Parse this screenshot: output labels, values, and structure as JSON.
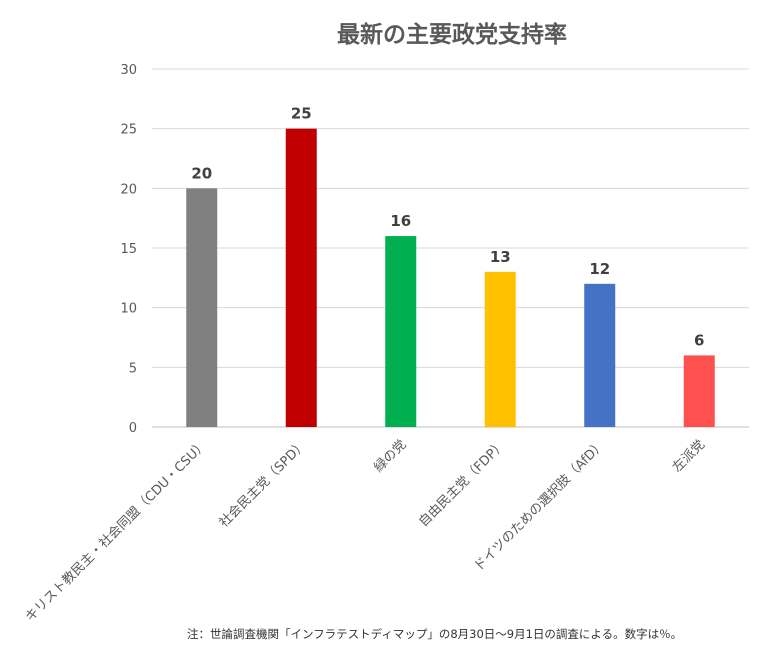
{
  "chart_data": {
    "type": "bar",
    "title": "最新の主要政党支持率",
    "categories": [
      "キリスト教民主・社会同盟（CDU・CSU）",
      "社会民主党（SPD）",
      "緑の党",
      "自由民主党（FDP）",
      "ドイツのための選択肢（AfD）",
      "左派党"
    ],
    "values": [
      20,
      25,
      16,
      13,
      12,
      6
    ],
    "colors": [
      "#808080",
      "#c00000",
      "#00b050",
      "#ffc000",
      "#4472c4",
      "#ff5050"
    ],
    "ylim": [
      0,
      30
    ],
    "yticks": [
      0,
      5,
      10,
      15,
      20,
      25,
      30
    ],
    "grid": true,
    "data_labels": true
  },
  "note": "注：世論調査機関「インフラテストディマップ」の8月30日～9月1日の調査による。数字は％。"
}
